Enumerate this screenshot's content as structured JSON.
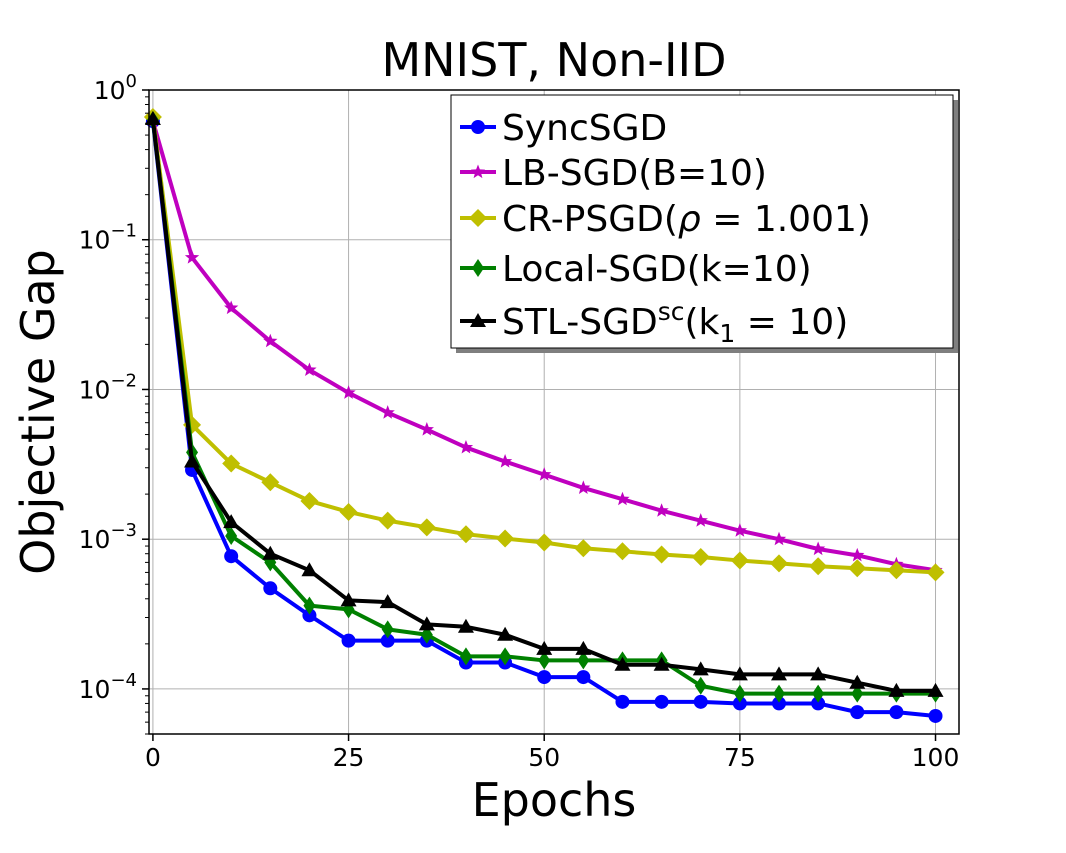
{
  "chart_data": {
    "type": "line",
    "title": "MNIST, Non-IID",
    "xlabel": "Epochs",
    "ylabel": "Objective Gap",
    "xlim": [
      0,
      103
    ],
    "ylim": [
      5e-05,
      1.0
    ],
    "yscale": "log",
    "grid": true,
    "legend_position": "top-right",
    "x_ticks": [
      0,
      25,
      50,
      75,
      100
    ],
    "x_tick_labels": [
      "0",
      "25",
      "50",
      "75",
      "100"
    ],
    "y_ticks": [
      1,
      0.1,
      0.01,
      0.001,
      0.0001
    ],
    "y_tick_labels": [
      {
        "base": "10",
        "exp": "0"
      },
      {
        "base": "10",
        "exp": "−1"
      },
      {
        "base": "10",
        "exp": "−2"
      },
      {
        "base": "10",
        "exp": "−3"
      },
      {
        "base": "10",
        "exp": "−4"
      }
    ],
    "x": [
      0,
      5,
      10,
      15,
      20,
      25,
      30,
      35,
      40,
      45,
      50,
      55,
      60,
      65,
      70,
      75,
      80,
      85,
      90,
      95,
      100
    ],
    "series": [
      {
        "name": "SyncSGD",
        "legend_label": "SyncSGD",
        "color": "#0000ff",
        "marker": "circle",
        "values": [
          0.62,
          0.0029,
          0.00077,
          0.00047,
          0.00031,
          0.00021,
          0.00021,
          0.00021,
          0.00015,
          0.00015,
          0.00012,
          0.00012,
          8.2e-05,
          8.2e-05,
          8.2e-05,
          8e-05,
          8e-05,
          8e-05,
          7e-05,
          7e-05,
          6.6e-05
        ]
      },
      {
        "name": "LB-SGD",
        "legend_label": "LB-SGD(B=10)",
        "color": "#bf00bf",
        "marker": "star",
        "values": [
          0.62,
          0.076,
          0.035,
          0.021,
          0.0135,
          0.0095,
          0.007,
          0.0054,
          0.0041,
          0.0033,
          0.0027,
          0.0022,
          0.00185,
          0.00155,
          0.00133,
          0.00114,
          0.001,
          0.00086,
          0.00078,
          0.00068,
          0.00062
        ]
      },
      {
        "name": "CR-PSGD",
        "legend_label": "CR-PSGD(ρ = 1.001)",
        "legend_prefix": "CR-PSGD(",
        "legend_symbol": "ρ",
        "legend_suffix": " = 1.001)",
        "color": "#bfbf00",
        "marker": "diamond",
        "values": [
          0.66,
          0.0058,
          0.0032,
          0.0024,
          0.0018,
          0.00152,
          0.00133,
          0.0012,
          0.00108,
          0.00101,
          0.00095,
          0.00087,
          0.00083,
          0.00079,
          0.00076,
          0.00072,
          0.00069,
          0.00066,
          0.00064,
          0.00062,
          0.0006
        ]
      },
      {
        "name": "Local-SGD",
        "legend_label": "Local-SGD(k=10)",
        "color": "#008000",
        "marker": "thin_diamond",
        "values": [
          0.63,
          0.0038,
          0.00105,
          0.0007,
          0.00036,
          0.00034,
          0.00025,
          0.00023,
          0.000165,
          0.000165,
          0.000155,
          0.000155,
          0.000155,
          0.000155,
          0.000105,
          9.3e-05,
          9.3e-05,
          9.3e-05,
          9.3e-05,
          9.3e-05,
          9.3e-05
        ]
      },
      {
        "name": "STL-SGD",
        "legend_label": "STL-SGDsc(k1 = 10)",
        "legend_main": "STL-SGD",
        "legend_sup": "sc",
        "legend_args_open": "(k",
        "legend_sub": "1",
        "legend_args_close": " = 10)",
        "color": "#000000",
        "marker": "triangle",
        "values": [
          0.64,
          0.0033,
          0.0013,
          0.0008,
          0.00062,
          0.00039,
          0.00038,
          0.00027,
          0.00026,
          0.00023,
          0.000185,
          0.000185,
          0.000145,
          0.000145,
          0.000135,
          0.000125,
          0.000125,
          0.000125,
          0.00011,
          9.7e-05,
          9.7e-05
        ]
      }
    ]
  }
}
